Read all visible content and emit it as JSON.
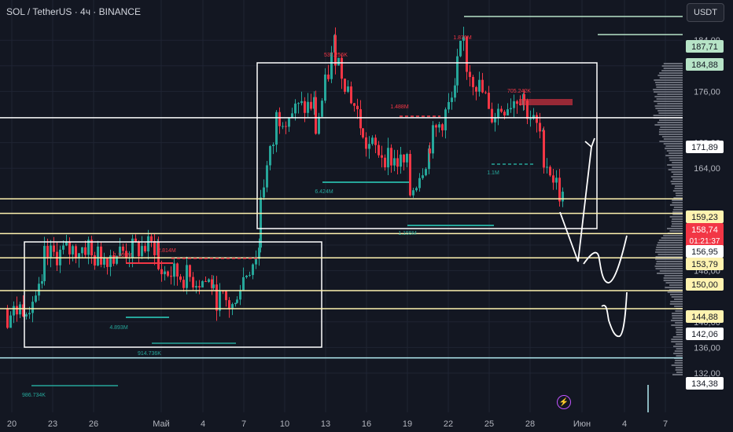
{
  "header": {
    "symbol_title": "SOL / TetherUS · 4ч · BINANCE",
    "currency_button": "USDT"
  },
  "chart_data": {
    "type": "candlestick",
    "price_axis_ticks": [
      "132,00",
      "136,00",
      "140,00",
      "148,00",
      "152,00",
      "164,00",
      "168,00",
      "176,00",
      "180,00",
      "184,00"
    ],
    "price_ylim": [
      130.5,
      191.5
    ],
    "date_axis_ticks": [
      "20",
      "23",
      "26",
      "Май",
      "4",
      "7",
      "10",
      "13",
      "16",
      "19",
      "22",
      "25",
      "28",
      "Июн",
      "4",
      "7"
    ],
    "level_labels": [
      {
        "value": "187,71",
        "color": "#b7e4c7"
      },
      {
        "value": "184,88",
        "color": "#b7e4c7"
      },
      {
        "value": "171,89",
        "color": "#ffffff"
      },
      {
        "value": "159,23",
        "color": "#fff3b0"
      },
      {
        "value": "158,74",
        "color": "#f23645"
      },
      {
        "value": "01:21:37",
        "color": "#f23645"
      },
      {
        "value": "156,95",
        "color": "#ffffff"
      },
      {
        "value": "153,79",
        "color": "#fff3b0"
      },
      {
        "value": "150,00",
        "color": "#fff3b0"
      },
      {
        "value": "144,88",
        "color": "#fff3b0"
      },
      {
        "value": "142,06",
        "color": "#ffffff"
      },
      {
        "value": "134,38",
        "color": "#ffffff"
      }
    ],
    "volume_annotations": [
      {
        "text": "537.256K",
        "color": "#f23645"
      },
      {
        "text": "1.876M",
        "color": "#f23645"
      },
      {
        "text": "1.488M",
        "color": "#f23645"
      },
      {
        "text": "705.242K",
        "color": "#f23645"
      },
      {
        "text": "1.269M",
        "color": "#f23645"
      },
      {
        "text": "2.814M",
        "color": "#f23645"
      },
      {
        "text": "6.424M",
        "color": "#26a69a"
      },
      {
        "text": "1.1M",
        "color": "#26a69a"
      },
      {
        "text": "1.155M",
        "color": "#26a69a"
      },
      {
        "text": "4.893M",
        "color": "#26a69a"
      },
      {
        "text": "914.736K",
        "color": "#26a69a"
      },
      {
        "text": "986.734K",
        "color": "#26a69a"
      }
    ],
    "up_color": "#26a69a",
    "down_color": "#f23645"
  }
}
